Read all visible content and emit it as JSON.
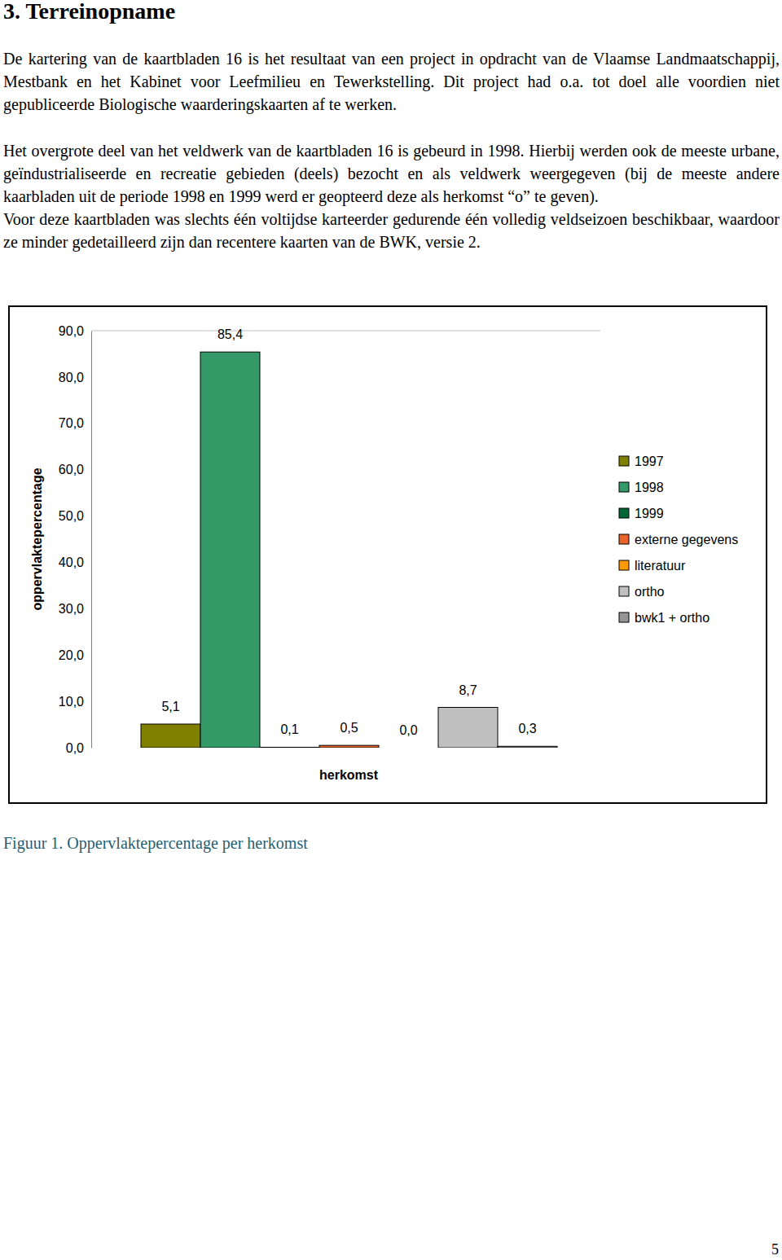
{
  "heading": "3. Terreinopname",
  "paragraphs": [
    "De kartering van de kaartbladen 16 is het resultaat van een project in opdracht van de Vlaamse Landmaatschappij, Mestbank en het Kabinet voor Leefmilieu en Tewerkstelling. Dit project had o.a. tot doel alle voordien niet gepubliceerde Biologische waarderingskaarten af te werken.",
    "Het overgrote deel van het veldwerk van de kaartbladen 16  is gebeurd in 1998. Hierbij werden ook de meeste urbane, geïndustrialiseerde en recreatie gebieden (deels) bezocht en als veldwerk weergegeven (bij de meeste andere kaarbladen uit de periode 1998 en 1999 werd er geopteerd deze als herkomst “o” te geven).",
    "Voor deze kaartbladen was slechts één voltijdse karteerder gedurende één volledig veldseizoen beschikbaar, waardoor ze minder gedetailleerd zijn dan recentere kaarten van de BWK, versie 2."
  ],
  "chart_data": {
    "type": "bar",
    "xlabel": "herkomst",
    "ylabel": "oppervlaktepercentage",
    "categories": [
      "1997",
      "1998",
      "1999",
      "externe gegevens",
      "literatuur",
      "ortho",
      "bwk1 + ortho"
    ],
    "values": [
      5.1,
      85.4,
      0.1,
      0.5,
      0.0,
      8.7,
      0.3
    ],
    "value_labels": [
      "5,1",
      "85,4",
      "0,1",
      "0,5",
      "0,0",
      "8,7",
      "0,3"
    ],
    "colors": [
      "#808000",
      "#339966",
      "#006633",
      "#e8642a",
      "#ff9900",
      "#c0c0c0",
      "#969696"
    ],
    "ylim": [
      0,
      90
    ],
    "yticks": [
      {
        "value": 0,
        "label": "0,0"
      },
      {
        "value": 10,
        "label": "10,0"
      },
      {
        "value": 20,
        "label": "20,0"
      },
      {
        "value": 30,
        "label": "30,0"
      },
      {
        "value": 40,
        "label": "40,0"
      },
      {
        "value": 50,
        "label": "50,0"
      },
      {
        "value": 60,
        "label": "60,0"
      },
      {
        "value": 70,
        "label": "70,0"
      },
      {
        "value": 80,
        "label": "80,0"
      },
      {
        "value": 90,
        "label": "90,0"
      }
    ],
    "data_labels": true,
    "tick_labels": "y",
    "legend": "right",
    "grid": false
  },
  "caption": "Figuur 1. Oppervlaktepercentage per herkomst",
  "page_number": 5
}
